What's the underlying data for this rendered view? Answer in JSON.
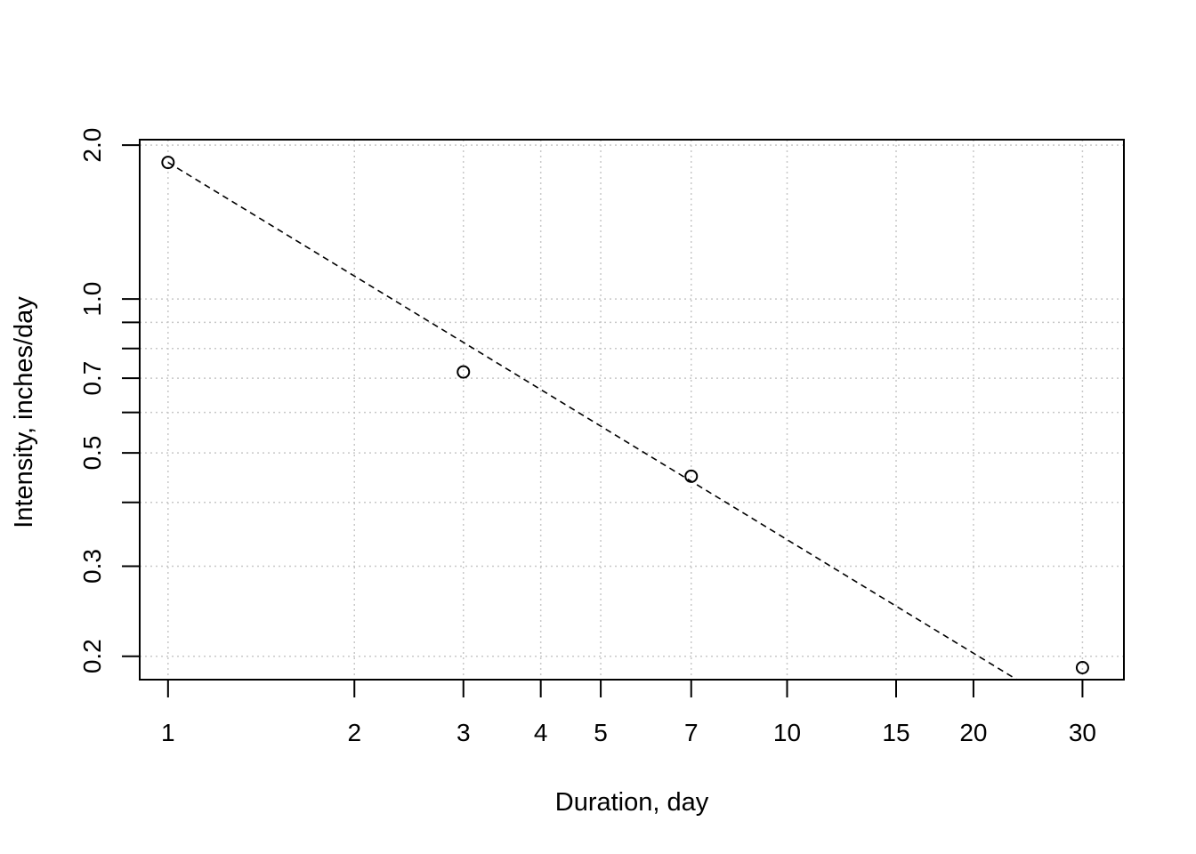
{
  "chart_data": {
    "type": "scatter",
    "title": "",
    "xlabel": "Duration, day",
    "ylabel": "Intensity, inches/day",
    "x_scale": "log",
    "y_scale": "log",
    "xlim": [
      0.9,
      35
    ],
    "ylim": [
      0.18,
      2.05
    ],
    "x_ticks": [
      1,
      2,
      3,
      4,
      5,
      7,
      10,
      15,
      20,
      30
    ],
    "x_tick_labels": [
      "1",
      "2",
      "3",
      "4",
      "5",
      "7",
      "10",
      "15",
      "20",
      "30"
    ],
    "y_ticks": [
      0.2,
      0.3,
      0.4,
      0.5,
      0.6,
      0.7,
      0.8,
      0.9,
      1.0,
      2.0
    ],
    "y_tick_labels": [
      "0.2",
      "0.3",
      "",
      "0.5",
      "",
      "0.7",
      "",
      "",
      "1.0",
      "2.0"
    ],
    "x_grid": [
      1,
      2,
      3,
      4,
      5,
      7,
      10,
      15,
      20,
      30
    ],
    "y_grid": [
      0.2,
      0.3,
      0.4,
      0.5,
      0.6,
      0.7,
      0.8,
      0.9,
      1.0,
      2.0
    ],
    "grid": true,
    "series": [
      {
        "type": "scatter",
        "marker": "open-circle",
        "x": [
          1,
          3,
          7,
          30
        ],
        "y": [
          1.85,
          0.72,
          0.45,
          0.19
        ]
      },
      {
        "type": "line",
        "style": "dashed",
        "x": [
          1,
          23.5
        ],
        "y": [
          1.85,
          0.18
        ]
      }
    ]
  }
}
